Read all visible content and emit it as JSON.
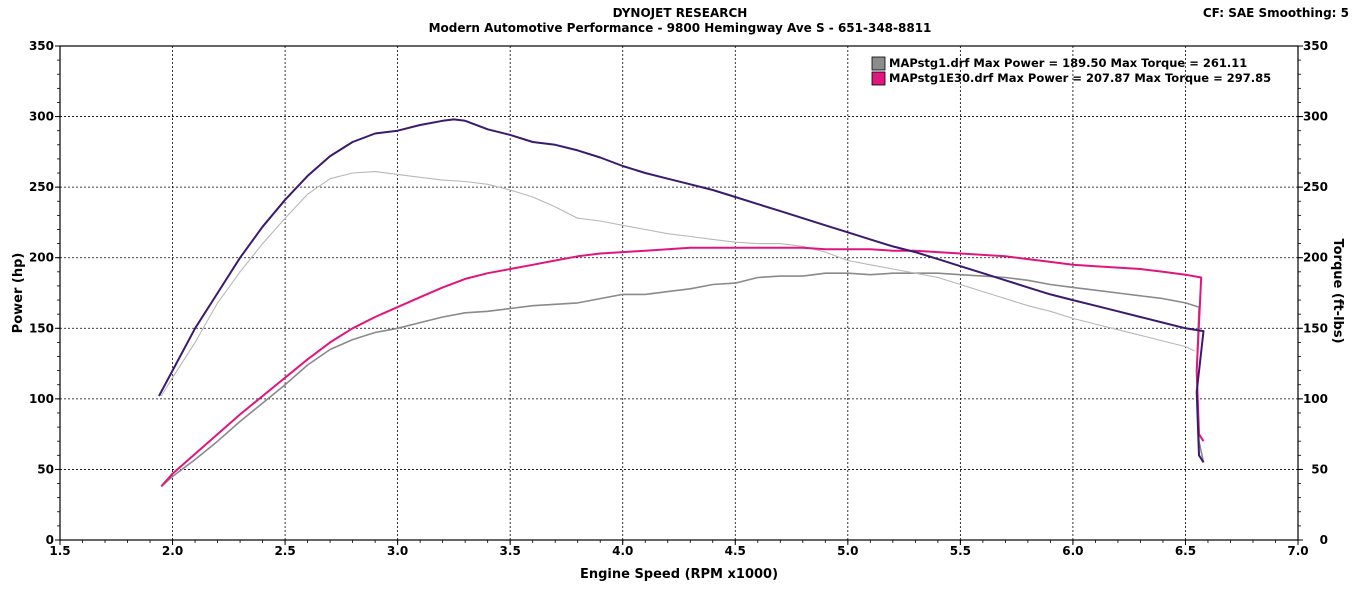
{
  "header": {
    "title": "DYNOJET RESEARCH",
    "subtitle": "Modern Automotive Performance - 9800 Hemingway Ave S - 651-348-8811",
    "settings": "CF: SAE  Smoothing: 5"
  },
  "chart_data": {
    "type": "line",
    "xlabel": "Engine Speed (RPM x1000)",
    "ylabel": "Power (hp)",
    "y2label": "Torque (ft-lbs)",
    "xlim": [
      1.5,
      7.0
    ],
    "ylim": [
      0,
      350
    ],
    "y2lim": [
      0,
      350
    ],
    "x_ticks": [
      "1.5",
      "2.0",
      "2.5",
      "3.0",
      "3.5",
      "4.0",
      "4.5",
      "5.0",
      "5.5",
      "6.0",
      "6.5",
      "7.0"
    ],
    "y_ticks": [
      "0",
      "50",
      "100",
      "150",
      "200",
      "250",
      "300",
      "350"
    ],
    "grid": true,
    "legend": {
      "placement": "top-right",
      "entries": [
        {
          "label": "MAPstg1.drf Max Power = 189.50 Max Torque = 261.11",
          "color": "#8c8c8c"
        },
        {
          "label": "MAPstg1E30.drf Max Power = 207.87 Max Torque = 297.85",
          "color": "#e0157e"
        }
      ]
    },
    "series": [
      {
        "name": "MAPstg1.drf",
        "quantity": "Power",
        "color": "#8a8a8a",
        "x": [
          1.95,
          2.0,
          2.1,
          2.2,
          2.3,
          2.4,
          2.5,
          2.6,
          2.7,
          2.8,
          2.9,
          3.0,
          3.1,
          3.2,
          3.3,
          3.4,
          3.5,
          3.6,
          3.7,
          3.8,
          3.9,
          4.0,
          4.1,
          4.2,
          4.3,
          4.4,
          4.5,
          4.6,
          4.7,
          4.8,
          4.9,
          5.0,
          5.1,
          5.2,
          5.3,
          5.4,
          5.5,
          5.6,
          5.7,
          5.8,
          5.9,
          6.0,
          6.1,
          6.2,
          6.3,
          6.4,
          6.5,
          6.56,
          6.55,
          6.56,
          6.58
        ],
        "y": [
          38,
          45,
          57,
          70,
          84,
          97,
          110,
          124,
          135,
          142,
          147,
          150,
          154,
          158,
          161,
          162,
          164,
          166,
          167,
          168,
          171,
          174,
          174,
          176,
          178,
          181,
          182,
          186,
          187,
          187,
          189,
          189,
          188,
          189,
          189,
          189,
          188,
          187,
          186,
          184,
          181,
          179,
          177,
          175,
          173,
          171,
          168,
          165,
          120,
          70,
          55
        ]
      },
      {
        "name": "MAPstg1.drf",
        "quantity": "Torque",
        "color": "#b8b8b8",
        "x": [
          1.95,
          2.0,
          2.1,
          2.2,
          2.3,
          2.4,
          2.5,
          2.6,
          2.7,
          2.8,
          2.9,
          3.0,
          3.1,
          3.2,
          3.3,
          3.4,
          3.5,
          3.6,
          3.7,
          3.8,
          3.9,
          4.0,
          4.1,
          4.2,
          4.3,
          4.4,
          4.5,
          4.6,
          4.7,
          4.8,
          4.9,
          5.0,
          5.1,
          5.2,
          5.3,
          5.4,
          5.5,
          5.6,
          5.7,
          5.8,
          5.9,
          6.0,
          6.1,
          6.2,
          6.3,
          6.4,
          6.5,
          6.54
        ],
        "y": [
          102,
          115,
          140,
          168,
          190,
          210,
          228,
          245,
          256,
          260,
          261,
          259,
          257,
          255,
          254,
          252,
          248,
          243,
          236,
          228,
          226,
          223,
          220,
          217,
          215,
          213,
          211,
          210,
          210,
          208,
          204,
          198,
          195,
          192,
          189,
          186,
          181,
          176,
          171,
          166,
          162,
          157,
          153,
          149,
          145,
          141,
          137,
          134
        ]
      },
      {
        "name": "MAPstg1E30.drf",
        "quantity": "Power",
        "color": "#e0157e",
        "x": [
          1.95,
          2.0,
          2.1,
          2.2,
          2.3,
          2.4,
          2.5,
          2.6,
          2.7,
          2.8,
          2.9,
          3.0,
          3.1,
          3.2,
          3.3,
          3.4,
          3.5,
          3.6,
          3.7,
          3.8,
          3.9,
          4.0,
          4.1,
          4.2,
          4.3,
          4.4,
          4.5,
          4.6,
          4.7,
          4.8,
          4.9,
          5.0,
          5.1,
          5.2,
          5.3,
          5.4,
          5.5,
          5.6,
          5.7,
          5.8,
          5.9,
          6.0,
          6.1,
          6.2,
          6.3,
          6.4,
          6.5,
          6.57,
          6.55,
          6.56,
          6.58
        ],
        "y": [
          38,
          47,
          61,
          75,
          89,
          102,
          115,
          128,
          140,
          150,
          158,
          165,
          172,
          179,
          185,
          189,
          192,
          195,
          198,
          201,
          203,
          204,
          205,
          206,
          207,
          207,
          207,
          207,
          207,
          207,
          206,
          206,
          206,
          205,
          205,
          204,
          203,
          202,
          201,
          199,
          197,
          195,
          194,
          193,
          192,
          190,
          188,
          186,
          120,
          75,
          70
        ]
      },
      {
        "name": "MAPstg1E30.drf",
        "quantity": "Torque",
        "color": "#3a1a6e",
        "x": [
          1.94,
          2.0,
          2.1,
          2.2,
          2.3,
          2.4,
          2.5,
          2.6,
          2.7,
          2.8,
          2.9,
          3.0,
          3.1,
          3.2,
          3.25,
          3.3,
          3.4,
          3.5,
          3.6,
          3.7,
          3.8,
          3.9,
          4.0,
          4.1,
          4.2,
          4.3,
          4.4,
          4.5,
          4.6,
          4.7,
          4.8,
          4.9,
          5.0,
          5.1,
          5.2,
          5.3,
          5.4,
          5.5,
          5.6,
          5.7,
          5.8,
          5.9,
          6.0,
          6.1,
          6.2,
          6.3,
          6.4,
          6.5,
          6.58,
          6.55,
          6.56,
          6.58
        ],
        "y": [
          102,
          120,
          150,
          175,
          200,
          222,
          241,
          258,
          272,
          282,
          288,
          290,
          294,
          297,
          298,
          297,
          291,
          287,
          282,
          280,
          276,
          271,
          265,
          260,
          256,
          252,
          248,
          243,
          238,
          233,
          228,
          223,
          218,
          213,
          208,
          204,
          199,
          194,
          189,
          184,
          179,
          174,
          170,
          166,
          162,
          158,
          154,
          150,
          148,
          105,
          60,
          55
        ]
      }
    ]
  }
}
